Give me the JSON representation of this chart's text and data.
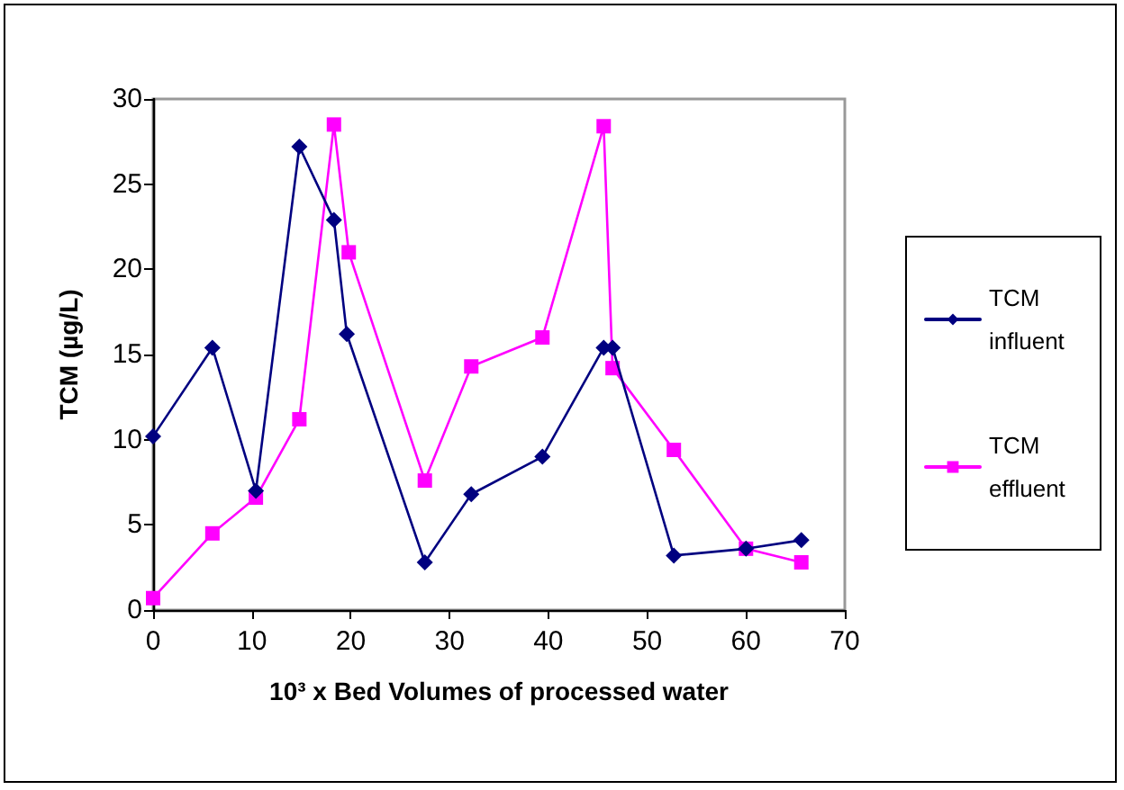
{
  "chart_data": {
    "type": "line",
    "xlabel": "10³ x Bed Volumes of processed water",
    "ylabel": "TCM (µg/L)",
    "xlim": [
      0,
      70
    ],
    "xticks": [
      0,
      10,
      20,
      30,
      40,
      50,
      60,
      70
    ],
    "ylim": [
      0,
      30
    ],
    "yticks": [
      0,
      5,
      10,
      15,
      20,
      25,
      30
    ],
    "grid": false,
    "legend": "right",
    "series": [
      {
        "name": "TCM influent",
        "color": "#000080",
        "marker": "diamond",
        "x": [
          0,
          6.0,
          10.4,
          14.8,
          18.3,
          19.6,
          27.5,
          32.2,
          39.4,
          45.6,
          46.5,
          52.7,
          60.0,
          65.6
        ],
        "values": [
          10.2,
          15.4,
          7.0,
          27.2,
          22.9,
          16.2,
          2.8,
          6.8,
          9.0,
          15.4,
          15.4,
          3.2,
          3.6,
          4.1
        ]
      },
      {
        "name": "TCM effluent",
        "color": "#ff00ff",
        "marker": "square",
        "x": [
          0,
          6.0,
          10.4,
          14.8,
          18.3,
          19.8,
          27.5,
          32.2,
          39.4,
          45.6,
          46.5,
          52.7,
          60.0,
          65.6
        ],
        "values": [
          0.7,
          4.5,
          6.6,
          11.2,
          28.5,
          21.0,
          7.6,
          14.3,
          16.0,
          28.4,
          14.2,
          9.4,
          3.6,
          2.8
        ]
      }
    ]
  }
}
